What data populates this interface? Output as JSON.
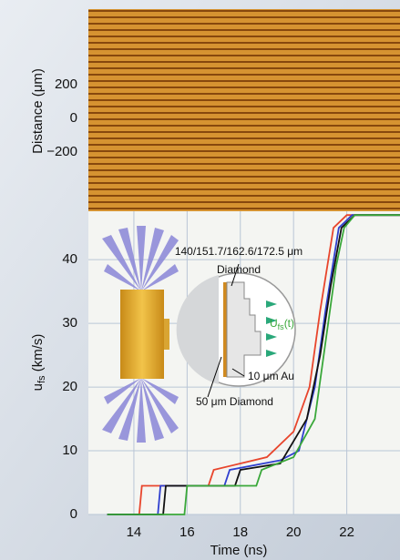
{
  "chart_data": {
    "type": "line",
    "xlabel": "Time (ns)",
    "ylabel": "u",
    "ylabel_sub": "fs",
    "ylabel_unit": " (km/s)",
    "xlim": [
      12.29,
      24.0
    ],
    "ylim": [
      0,
      47.6
    ],
    "xticks": [
      14,
      16,
      18,
      20,
      22
    ],
    "yticks": [
      0,
      10,
      20,
      30,
      40
    ],
    "grid": true,
    "series": [
      {
        "color": "#e8452c",
        "x": [
          13,
          14.2,
          14.3,
          16.8,
          17.0,
          19.0,
          20.0,
          20.6,
          21.0,
          21.5,
          22.0,
          24.0
        ],
        "values": [
          0,
          0,
          4.5,
          4.5,
          7,
          9,
          13,
          20,
          32,
          45,
          47,
          47
        ]
      },
      {
        "color": "#2f3fcf",
        "x": [
          13,
          14.9,
          15.0,
          17.4,
          17.6,
          19.5,
          20.2,
          20.8,
          21.2,
          21.7,
          22.2,
          24.0
        ],
        "values": [
          0,
          0,
          4.5,
          4.5,
          7,
          8.5,
          10,
          20,
          32,
          45,
          47,
          47
        ]
      },
      {
        "color": "#111111",
        "x": [
          13,
          15.1,
          15.2,
          17.8,
          18.0,
          19.5,
          20.5,
          21.0,
          21.4,
          21.8,
          22.3,
          24.0
        ],
        "values": [
          0,
          0,
          4.5,
          4.5,
          7,
          8,
          15,
          25,
          36,
          45,
          47,
          47
        ]
      },
      {
        "color": "#3aa83a",
        "x": [
          13,
          15.9,
          16.0,
          18.6,
          18.8,
          20.0,
          20.8,
          21.3,
          21.6,
          21.9,
          22.3,
          24.0
        ],
        "values": [
          0,
          0,
          4.5,
          4.5,
          7,
          9,
          15,
          30,
          39,
          45,
          47,
          47
        ]
      }
    ],
    "annotations": {
      "thickness": "140/151.7/162.6/172.5 μm",
      "diamond": "Diamond",
      "ufs": "U",
      "ufs_sub": "fs",
      "ufs_t": "(t)",
      "gold": "10 μm Au",
      "ablator": "50 μm Diamond"
    },
    "streak_panel": {
      "ylabel": "Distance (μm)",
      "yticks": [
        200,
        0,
        {
          "value": -200,
          "label": "−200"
        }
      ]
    }
  }
}
